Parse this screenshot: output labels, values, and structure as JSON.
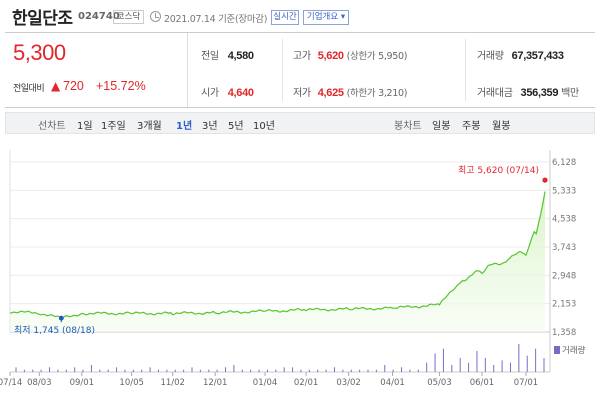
{
  "header": {
    "company_name": "한일단조",
    "stock_code": "024740",
    "market_badge": "코스닥",
    "base_date": "2021.07.14 기준(장마감)",
    "realtime_button": "실시간",
    "corp_info_button": "기업개요 ▾"
  },
  "quote": {
    "current_price": "5,300",
    "change_label": "전일대비",
    "change_arrow": "▲",
    "change_value": "720",
    "change_pct": "+15.72%",
    "prev_close_label": "전일",
    "prev_close": "4,580",
    "high_label": "고가",
    "high": "5,620",
    "upper_limit": "(상한가 5,950)",
    "volume_label": "거래량",
    "volume": "67,357,433",
    "open_label": "시가",
    "open": "4,640",
    "low_label": "저가",
    "low": "4,625",
    "lower_limit": "(하한가 3,210)",
    "amount_label": "거래대금",
    "amount": "356,359",
    "amount_unit": "백만"
  },
  "toolbar": {
    "line_label": "선차트",
    "periods": [
      "1일",
      "1주일",
      "3개월",
      "1년",
      "3년",
      "5년",
      "10년"
    ],
    "selected_period": "1년",
    "candle_label": "봉차트",
    "candles": [
      "일봉",
      "주봉",
      "월봉"
    ]
  },
  "colors": {
    "up": "#e2262b",
    "down": "#1d5bb8",
    "line": "#54c52d",
    "fill": "#d9f3c8",
    "volume": "#7a6cc4",
    "accent": "#2d5bd0"
  },
  "chart_data": {
    "type": "area",
    "x": [
      "2020-07-14",
      "2020-08-03",
      "2020-08-18",
      "2020-09-01",
      "2020-10-05",
      "2020-11-02",
      "2020-12-01",
      "2021-01-04",
      "2021-02-01",
      "2021-03-02",
      "2021-04-01",
      "2021-05-03",
      "2021-05-20",
      "2021-06-01",
      "2021-06-20",
      "2021-07-01",
      "2021-07-08",
      "2021-07-14"
    ],
    "values": [
      1930,
      1890,
      1745,
      1880,
      1880,
      1880,
      1900,
      1940,
      1980,
      2000,
      2030,
      2120,
      2900,
      3000,
      3500,
      3500,
      4200,
      5300
    ],
    "ylim": [
      1358,
      6128
    ],
    "yticks": [
      1358,
      2153,
      2948,
      3743,
      4538,
      5333,
      6128
    ],
    "xticks": [
      "07/14",
      "08/03",
      "09/01",
      "10/05",
      "11/02",
      "12/01",
      "01/04",
      "02/01",
      "03/02",
      "04/01",
      "05/03",
      "06/01",
      "07/01"
    ],
    "max_annotation": "최고 5,620 (07/14)",
    "min_annotation": "최저 1,745 (08/18)",
    "volume_label": "거래량",
    "volume_values": [
      2,
      1,
      1,
      1,
      2,
      1,
      1,
      2,
      1,
      3,
      1,
      1,
      2,
      1,
      1,
      1,
      2,
      1,
      1,
      1,
      1,
      2,
      1,
      1,
      1,
      2,
      3,
      1,
      1,
      1,
      1,
      1,
      2,
      2,
      1,
      1,
      1,
      1,
      2,
      1,
      1,
      1,
      1,
      1,
      3,
      1,
      2,
      1,
      1,
      4,
      8,
      10,
      3,
      6,
      4,
      9,
      6,
      3,
      5,
      4,
      12,
      7,
      10,
      6
    ]
  }
}
